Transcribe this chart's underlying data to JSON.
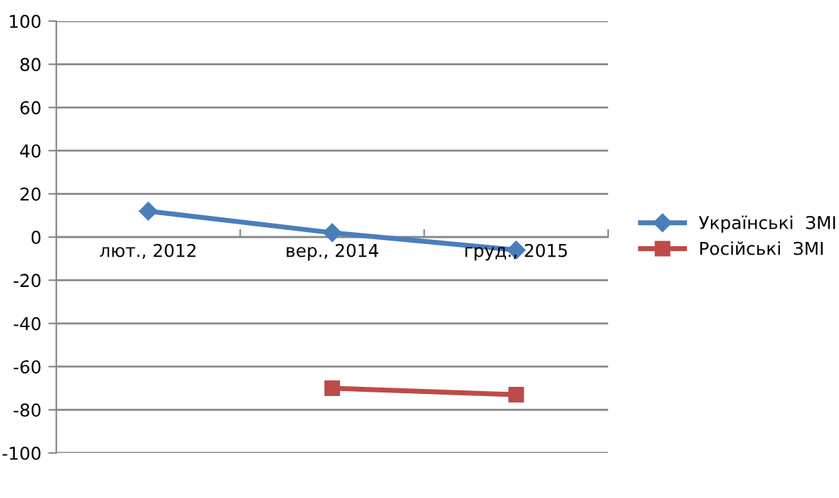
{
  "chart_data": {
    "type": "line",
    "categories": [
      "лют., 2012",
      "вер., 2014",
      "груд., 2015"
    ],
    "series": [
      {
        "name": "Українські  ЗМІ",
        "color": "#4a7ebb",
        "values": [
          12,
          2,
          -6
        ],
        "marker": "diamond"
      },
      {
        "name": "Російські  ЗМІ",
        "color": "#be4b48",
        "values": [
          null,
          -70,
          -73
        ],
        "marker": "square"
      }
    ],
    "ylim": [
      -100,
      100
    ],
    "yticks": [
      -100,
      -80,
      -60,
      -40,
      -20,
      0,
      20,
      40,
      60,
      80,
      100
    ],
    "grid": "y",
    "legend": "right"
  }
}
